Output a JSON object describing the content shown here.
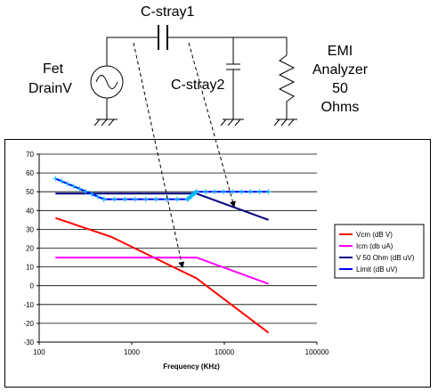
{
  "schematic": {
    "capacitor_top": "C-stray1",
    "capacitor_shunt": "C-stray2",
    "source_label_1": "Fet",
    "source_label_2": "DrainV",
    "load_label_1": "EMI",
    "load_label_2": "Analyzer",
    "load_label_3": "50",
    "load_label_4": "Ohms"
  },
  "chart_data": {
    "type": "line",
    "xlabel": "Frequency (KHz)",
    "ylabel": "",
    "title": "",
    "xscale": "log",
    "xlim": [
      100,
      100000
    ],
    "ylim": [
      -30,
      70
    ],
    "xticks": [
      "100",
      "1000",
      "10000",
      "100000"
    ],
    "yticks": [
      "70",
      "60",
      "50",
      "40",
      "30",
      "20",
      "10",
      "0",
      "-10",
      "-20",
      "-30"
    ],
    "grid": "horizontal",
    "legend_position": "right",
    "series": [
      {
        "name": "Vcm (dB V)",
        "color": "#ff0000",
        "x": [
          150,
          600,
          5000,
          30000
        ],
        "y": [
          36,
          26,
          4,
          -25
        ]
      },
      {
        "name": "Icm (db uA)",
        "color": "#ff00ff",
        "x": [
          150,
          5000,
          30000
        ],
        "y": [
          15,
          15,
          1
        ]
      },
      {
        "name": "V 50 Ohm (dB uV)",
        "color": "#000080",
        "x": [
          150,
          5000,
          30000
        ],
        "y": [
          49,
          49,
          35
        ]
      },
      {
        "name": "Limit (dB uV)",
        "color": "#0000ff",
        "x": [
          150,
          500,
          4000,
          5000,
          30000
        ],
        "y": [
          57,
          46,
          46,
          50,
          50
        ]
      }
    ]
  }
}
